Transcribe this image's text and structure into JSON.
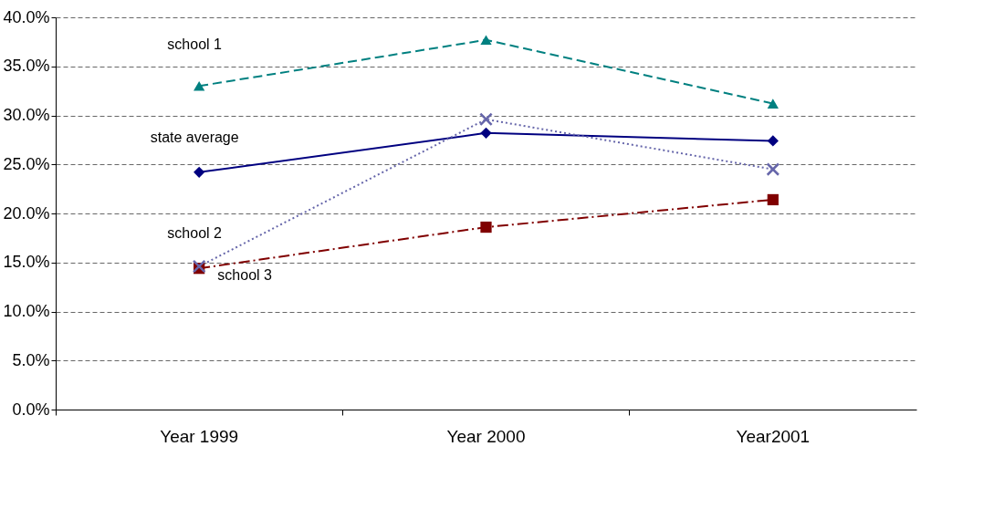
{
  "chart_data": {
    "type": "line",
    "categories": [
      "Year 1999",
      "Year 2000",
      "Year2001"
    ],
    "ylim": [
      0,
      40
    ],
    "yticks": [
      {
        "value": 0,
        "label": "0.0%"
      },
      {
        "value": 5,
        "label": "5.0%"
      },
      {
        "value": 10,
        "label": "10.0%"
      },
      {
        "value": 15,
        "label": "15.0%"
      },
      {
        "value": 20,
        "label": "20.0%"
      },
      {
        "value": 25,
        "label": "25.0%"
      },
      {
        "value": 30,
        "label": "30.0%"
      },
      {
        "value": 35,
        "label": "35.0%"
      },
      {
        "value": 40,
        "label": "40.0%"
      }
    ],
    "grid": "y",
    "legend": false,
    "series": [
      {
        "name": "school 1",
        "color": "#008080",
        "marker": "triangle",
        "line_style": "dashed",
        "values": [
          33.0,
          37.7,
          31.2
        ]
      },
      {
        "name": "state average",
        "color": "#000080",
        "marker": "diamond",
        "line_style": "solid",
        "values": [
          24.2,
          28.2,
          27.4
        ]
      },
      {
        "name": "school 2",
        "color": "#6666aa",
        "marker": "cross",
        "line_style": "dotted",
        "values": [
          14.6,
          29.6,
          24.5
        ]
      },
      {
        "name": "school 3",
        "color": "#800000",
        "marker": "square",
        "line_style": "dashdot",
        "values": [
          14.4,
          18.6,
          21.4
        ]
      }
    ]
  }
}
